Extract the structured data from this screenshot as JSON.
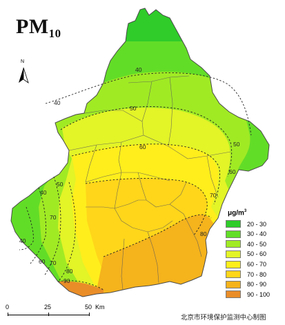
{
  "title": {
    "main": "PM",
    "sub": "10"
  },
  "north_arrow": {
    "label": "N"
  },
  "legend": {
    "unit": "μg/m",
    "unit_sup": "3",
    "items": [
      {
        "label": "20 - 30",
        "color": "#2fcc2a"
      },
      {
        "label": "30 - 40",
        "color": "#62dd27"
      },
      {
        "label": "40 - 50",
        "color": "#a0ea24"
      },
      {
        "label": "50 - 60",
        "color": "#e3f427"
      },
      {
        "label": "60 - 70",
        "color": "#ffee1c"
      },
      {
        "label": "70 - 80",
        "color": "#ffd61a"
      },
      {
        "label": "80 - 90",
        "color": "#f5b31c"
      },
      {
        "label": "90 - 100",
        "color": "#e98d28"
      }
    ]
  },
  "contour_labels": [
    "40",
    "40",
    "50",
    "50",
    "60",
    "60",
    "70",
    "80",
    "80",
    "90",
    "40",
    "50",
    "60",
    "70",
    "40",
    "70"
  ],
  "scale_bar": {
    "ticks": [
      "0",
      "25",
      "50"
    ],
    "unit": "Km"
  },
  "credit": "北京市环境保护监测中心制图"
}
